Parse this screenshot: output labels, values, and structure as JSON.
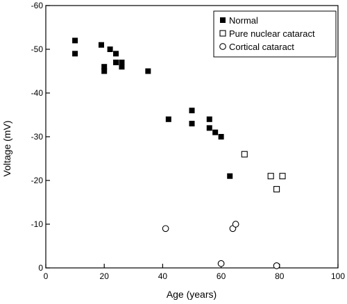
{
  "chart_data": {
    "type": "scatter",
    "title": "",
    "xlabel": "Age (years)",
    "ylabel": "Voltage (mV)",
    "xlim": [
      0,
      100
    ],
    "ylim": [
      0,
      -60
    ],
    "x_ticks": [
      "0",
      "20",
      "40",
      "60",
      "80",
      "100"
    ],
    "y_ticks": [
      "0",
      "-10",
      "-20",
      "-30",
      "-40",
      "-50",
      "-60"
    ],
    "legend_position": "top-right",
    "series": [
      {
        "name": "Normal",
        "marker": "filled-square",
        "color": "#000000",
        "points": [
          [
            10,
            -52
          ],
          [
            10,
            -49
          ],
          [
            19,
            -51
          ],
          [
            20,
            -46
          ],
          [
            20,
            -45
          ],
          [
            22,
            -50
          ],
          [
            24,
            -49
          ],
          [
            24,
            -47
          ],
          [
            26,
            -47
          ],
          [
            26,
            -46
          ],
          [
            35,
            -45
          ],
          [
            42,
            -34
          ],
          [
            50,
            -36
          ],
          [
            50,
            -33
          ],
          [
            56,
            -34
          ],
          [
            56,
            -32
          ],
          [
            58,
            -31
          ],
          [
            60,
            -30
          ],
          [
            63,
            -21
          ]
        ]
      },
      {
        "name": "Pure nuclear cataract",
        "marker": "open-square",
        "color": "#000000",
        "points": [
          [
            68,
            -26
          ],
          [
            77,
            -21
          ],
          [
            79,
            -18
          ],
          [
            81,
            -21
          ]
        ]
      },
      {
        "name": "Cortical cataract",
        "marker": "open-circle",
        "color": "#000000",
        "points": [
          [
            41,
            -9
          ],
          [
            60,
            -1
          ],
          [
            64,
            -9
          ],
          [
            65,
            -10
          ],
          [
            79,
            -0.5
          ]
        ]
      }
    ]
  }
}
